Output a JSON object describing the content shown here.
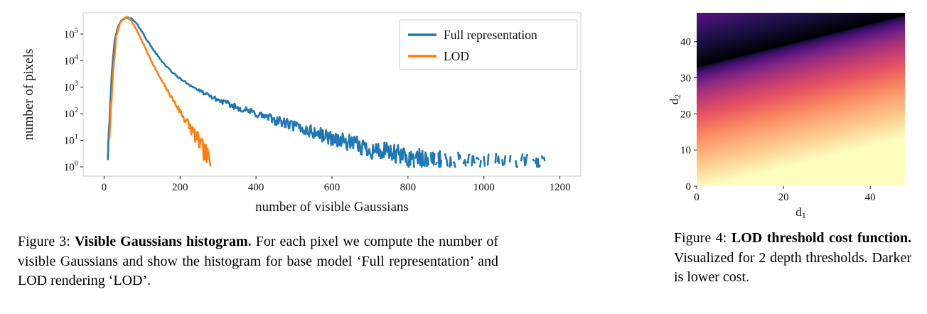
{
  "figure3": {
    "caption_label": "Figure 3:",
    "caption_title": "Visible Gaussians histogram.",
    "caption_text": "For each pixel we compute the number of visible Gaussians and show the histogram for base model ‘Full representation’ and LOD rendering ‘LOD’."
  },
  "figure4": {
    "caption_label": "Figure 4:",
    "caption_title": "LOD threshold cost function.",
    "caption_text": "Visualized for 2 depth thresholds. Darker is lower cost."
  },
  "chart_data": [
    {
      "id": "visible-gaussians-histogram",
      "type": "line",
      "title": "",
      "xlabel": "number of visible Gaussians",
      "ylabel": "number of pixels",
      "xlim": [
        -55,
        1255
      ],
      "xticks": [
        0,
        200,
        400,
        600,
        800,
        1000,
        1200
      ],
      "yscale": "log",
      "ytick_exponents": [
        0,
        1,
        2,
        3,
        4,
        5
      ],
      "ylim_log": [
        -0.35,
        5.8
      ],
      "grid": false,
      "legend_position": "upper right",
      "spine_color": "#c3c9d2",
      "tick_color": "#222222",
      "series": [
        {
          "name": "Full representation",
          "color": "#1f77b4",
          "control_points": [
            [
              8,
              1
            ],
            [
              14,
              60
            ],
            [
              20,
              3000
            ],
            [
              28,
              60000
            ],
            [
              38,
              220000
            ],
            [
              50,
              370000
            ],
            [
              62,
              420000
            ],
            [
              72,
              380000
            ],
            [
              85,
              250000
            ],
            [
              95,
              160000
            ],
            [
              110,
              70000
            ],
            [
              125,
              32000
            ],
            [
              140,
              16000
            ],
            [
              160,
              7000
            ],
            [
              180,
              3600
            ],
            [
              200,
              2100
            ],
            [
              230,
              1100
            ],
            [
              260,
              620
            ],
            [
              300,
              330
            ],
            [
              350,
              175
            ],
            [
              400,
              100
            ],
            [
              450,
              58
            ],
            [
              500,
              34
            ],
            [
              550,
              20
            ],
            [
              600,
              12
            ],
            [
              650,
              7.5
            ],
            [
              700,
              4.6
            ],
            [
              750,
              3.2
            ],
            [
              800,
              2.2
            ],
            [
              850,
              1.6
            ],
            [
              900,
              1.35
            ],
            [
              950,
              1.2
            ],
            [
              1000,
              1.1
            ],
            [
              1060,
              1.05
            ],
            [
              1120,
              1.0
            ],
            [
              1160,
              1.0
            ]
          ]
        },
        {
          "name": "LOD",
          "color": "#ff7f0e",
          "control_points": [
            [
              12,
              1
            ],
            [
              17,
              80
            ],
            [
              24,
              4000
            ],
            [
              32,
              80000
            ],
            [
              42,
              260000
            ],
            [
              52,
              390000
            ],
            [
              60,
              420000
            ],
            [
              70,
              340000
            ],
            [
              80,
              200000
            ],
            [
              92,
              95000
            ],
            [
              105,
              38000
            ],
            [
              118,
              15000
            ],
            [
              130,
              6800
            ],
            [
              145,
              2600
            ],
            [
              160,
              1100
            ],
            [
              175,
              480
            ],
            [
              190,
              210
            ],
            [
              205,
              95
            ],
            [
              220,
              45
            ],
            [
              235,
              20
            ],
            [
              250,
              8.5
            ],
            [
              262,
              4
            ],
            [
              272,
              2.2
            ],
            [
              282,
              1.3
            ],
            [
              292,
              1.0
            ]
          ]
        }
      ]
    },
    {
      "id": "lod-threshold-cost-heatmap",
      "type": "heatmap",
      "xlabel": {
        "base": "d",
        "sub": "1"
      },
      "ylabel": {
        "base": "d",
        "sub": "2"
      },
      "xlim": [
        0,
        48
      ],
      "ylim": [
        0,
        48
      ],
      "xticks": [
        0,
        20,
        40
      ],
      "yticks": [
        0,
        10,
        20,
        30,
        40
      ],
      "cost_model": {
        "band_intercept": 33,
        "band_slope": 0.3,
        "below_width": 34,
        "above_width": 28,
        "above_scale": 0.5,
        "note": "darker is lower cost; dark valley runs diagonally from (0,33) to (48,47)"
      },
      "colormap": {
        "name": "magma",
        "stops": [
          [
            0,
            "#000004"
          ],
          [
            0.13,
            "#1d1147"
          ],
          [
            0.25,
            "#51127c"
          ],
          [
            0.38,
            "#822681"
          ],
          [
            0.5,
            "#b73779"
          ],
          [
            0.63,
            "#e75263"
          ],
          [
            0.75,
            "#fb8861"
          ],
          [
            0.88,
            "#fec287"
          ],
          [
            1,
            "#fcfdbf"
          ]
        ]
      }
    }
  ]
}
